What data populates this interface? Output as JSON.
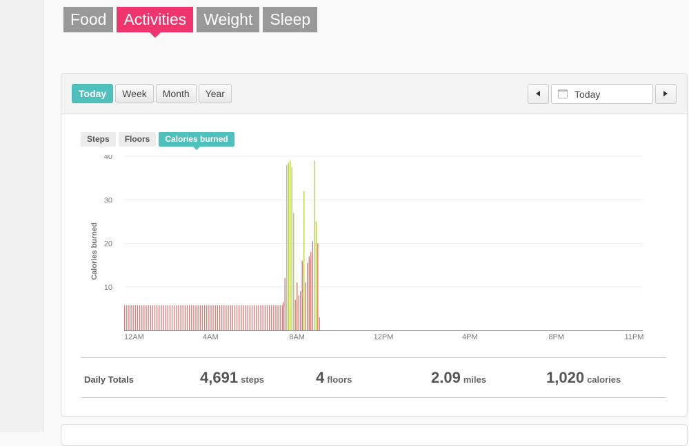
{
  "nav": {
    "tabs": [
      {
        "label": "Food",
        "active": false
      },
      {
        "label": "Activities",
        "active": true
      },
      {
        "label": "Weight",
        "active": false
      },
      {
        "label": "Sleep",
        "active": false
      }
    ]
  },
  "range": {
    "buttons": [
      {
        "label": "Today",
        "active": true
      },
      {
        "label": "Week",
        "active": false
      },
      {
        "label": "Month",
        "active": false
      },
      {
        "label": "Year",
        "active": false
      }
    ]
  },
  "date_picker": {
    "value": "Today",
    "icon": "calendar-icon"
  },
  "metric_tabs": [
    {
      "label": "Steps",
      "active": false
    },
    {
      "label": "Floors",
      "active": false
    },
    {
      "label": "Calories burned",
      "active": true
    }
  ],
  "chart_data": {
    "type": "bar",
    "ylabel": "Calories burned",
    "ylim": [
      0,
      40
    ],
    "yticks": [
      10,
      20,
      30,
      40
    ],
    "xlim": [
      0,
      24
    ],
    "x_unit": "hours since 12AM",
    "xticks": [
      {
        "h": 0,
        "label": "12AM"
      },
      {
        "h": 4,
        "label": "4AM"
      },
      {
        "h": 8,
        "label": "8AM"
      },
      {
        "h": 12,
        "label": "12PM"
      },
      {
        "h": 16,
        "label": "4PM"
      },
      {
        "h": 20,
        "label": "8PM"
      },
      {
        "h": 23.6,
        "label": "11PM"
      }
    ],
    "grid": true,
    "colors": {
      "sedentary": "#d97a73",
      "active": "#b9d04a"
    },
    "baseline": {
      "start_h": 0,
      "end_h": 7.3,
      "step_h": 0.1,
      "value": 5.8,
      "color": "sedentary"
    },
    "bars": [
      {
        "x": 7.35,
        "y": 6.5,
        "c": "sedentary"
      },
      {
        "x": 7.42,
        "y": 12.0,
        "c": "sedentary"
      },
      {
        "x": 7.5,
        "y": 38.0,
        "c": "active"
      },
      {
        "x": 7.58,
        "y": 38.5,
        "c": "active"
      },
      {
        "x": 7.66,
        "y": 39.0,
        "c": "active"
      },
      {
        "x": 7.74,
        "y": 37.5,
        "c": "active"
      },
      {
        "x": 7.82,
        "y": 27.0,
        "c": "active"
      },
      {
        "x": 7.9,
        "y": 7.0,
        "c": "sedentary"
      },
      {
        "x": 7.98,
        "y": 11.0,
        "c": "sedentary"
      },
      {
        "x": 8.06,
        "y": 8.0,
        "c": "sedentary"
      },
      {
        "x": 8.14,
        "y": 9.0,
        "c": "sedentary"
      },
      {
        "x": 8.22,
        "y": 16.0,
        "c": "sedentary"
      },
      {
        "x": 8.3,
        "y": 32.0,
        "c": "active"
      },
      {
        "x": 8.38,
        "y": 11.0,
        "c": "sedentary"
      },
      {
        "x": 8.46,
        "y": 15.5,
        "c": "sedentary"
      },
      {
        "x": 8.54,
        "y": 17.0,
        "c": "sedentary"
      },
      {
        "x": 8.62,
        "y": 18.0,
        "c": "sedentary"
      },
      {
        "x": 8.7,
        "y": 20.5,
        "c": "sedentary"
      },
      {
        "x": 8.78,
        "y": 39.0,
        "c": "active"
      },
      {
        "x": 8.86,
        "y": 25.0,
        "c": "active"
      },
      {
        "x": 8.94,
        "y": 20.0,
        "c": "sedentary"
      },
      {
        "x": 9.02,
        "y": 3.0,
        "c": "sedentary"
      }
    ]
  },
  "totals": {
    "label": "Daily Totals",
    "steps": {
      "value": "4,691",
      "unit": "steps"
    },
    "floors": {
      "value": "4",
      "unit": "floors"
    },
    "miles": {
      "value": "2.09",
      "unit": "miles"
    },
    "calories": {
      "value": "1,020",
      "unit": "calories"
    }
  }
}
